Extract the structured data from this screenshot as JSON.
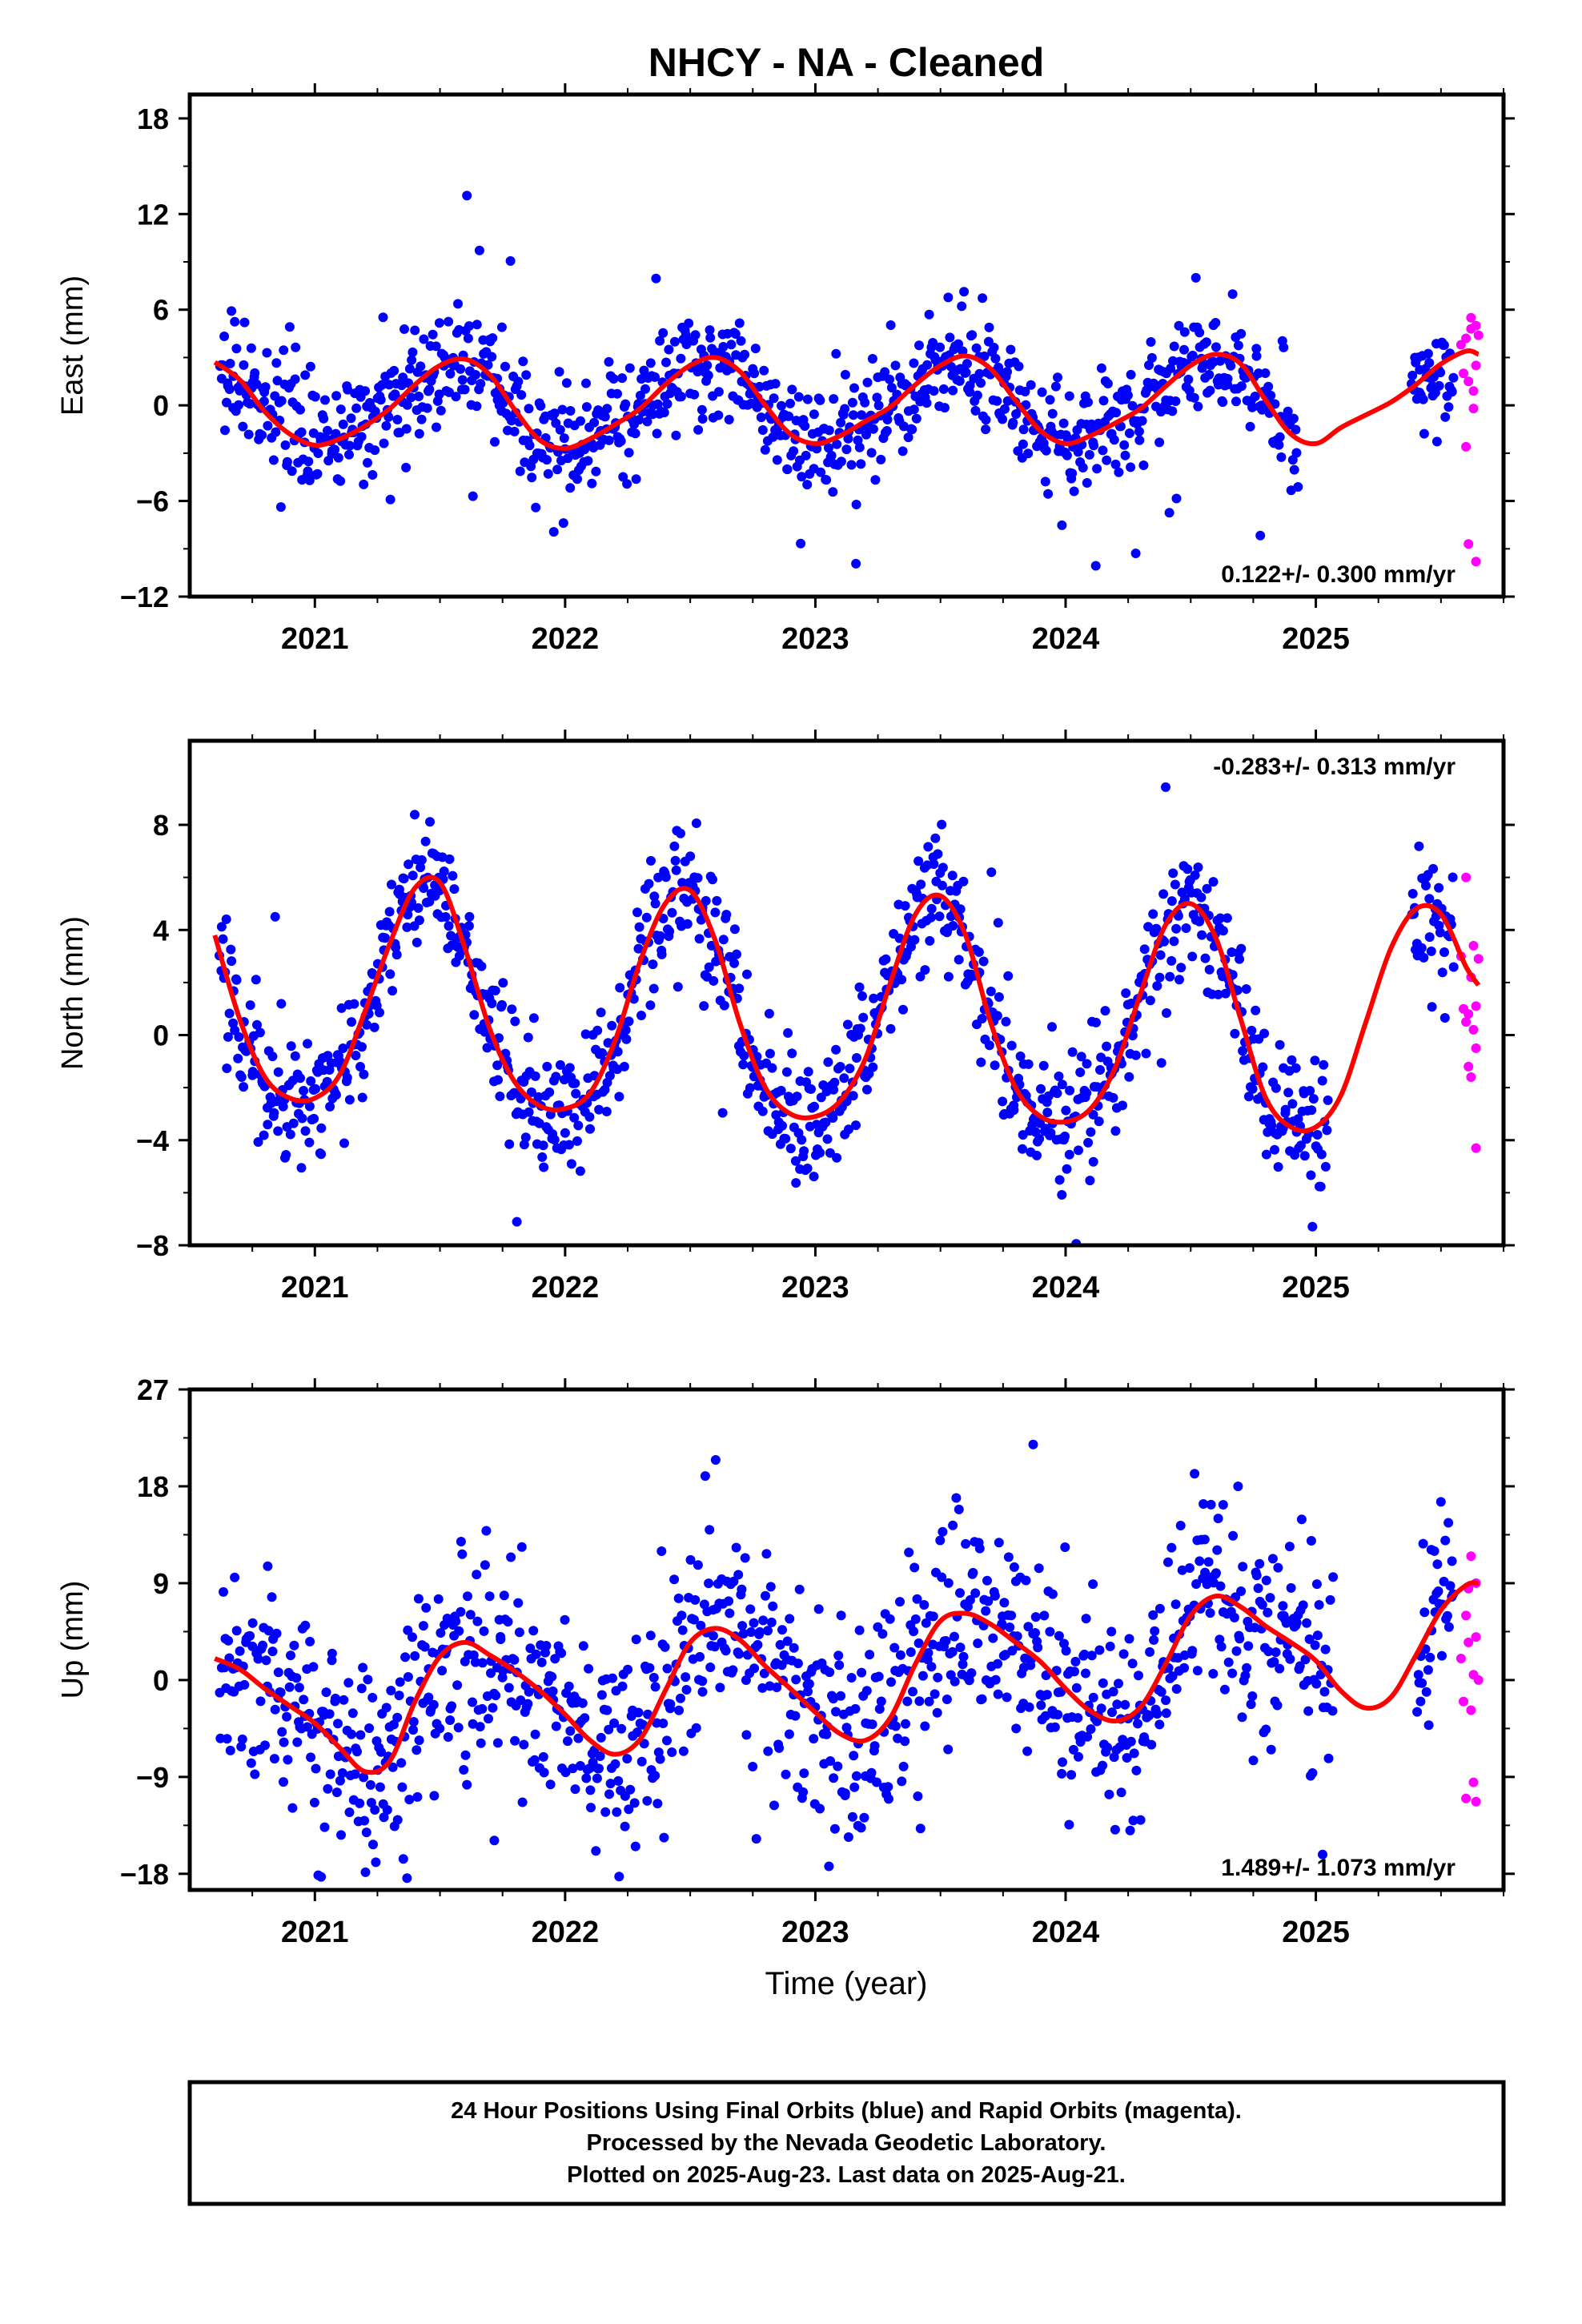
{
  "title": "NHCY  - NA - Cleaned",
  "xlabel": "Time (year)",
  "colors": {
    "final": "#0000ff",
    "rapid": "#ff00ff",
    "model": "#ff0000",
    "frame": "#000000"
  },
  "footer": {
    "lines": [
      "24 Hour Positions Using Final Orbits (blue) and Rapid Orbits (magenta).",
      "Processed by the Nevada Geodetic Laboratory.",
      "Plotted on 2025-Aug-23. Last data on 2025-Aug-21."
    ]
  },
  "chart_data": [
    {
      "type": "scatter",
      "component": "east",
      "ylabel": "East (mm)",
      "xlim": [
        2020.5,
        2025.75
      ],
      "ylim": [
        -12,
        19.5
      ],
      "xticks": [
        2021,
        2022,
        2023,
        2024,
        2025
      ],
      "yticks": [
        -12,
        -6,
        0,
        6,
        12,
        18
      ],
      "yticklabels": [
        "−12",
        "−6",
        "0",
        "6",
        "12",
        "18"
      ],
      "rate_label": "0.122+/- 0.300 mm/yr",
      "rate_position": "bottom-right",
      "model": {
        "name": "model",
        "x": [
          2020.6,
          2020.7,
          2020.8,
          2020.9,
          2021.0,
          2021.1,
          2021.2,
          2021.3,
          2021.4,
          2021.5,
          2021.6,
          2021.7,
          2021.8,
          2021.9,
          2022.0,
          2022.1,
          2022.2,
          2022.3,
          2022.4,
          2022.5,
          2022.6,
          2022.7,
          2022.8,
          2022.9,
          2023.0,
          2023.1,
          2023.2,
          2023.3,
          2023.4,
          2023.5,
          2023.6,
          2023.7,
          2023.8,
          2023.9,
          2024.0,
          2024.1,
          2024.2,
          2024.3,
          2024.4,
          2024.5,
          2024.6,
          2024.7,
          2024.8,
          2024.9,
          2025.0,
          2025.1,
          2025.2,
          2025.3,
          2025.4,
          2025.5,
          2025.6,
          2025.65
        ],
        "y": [
          2.7,
          1.6,
          -0.4,
          -1.8,
          -2.5,
          -2.1,
          -1.3,
          -0.2,
          1.3,
          2.5,
          2.9,
          1.9,
          -0.3,
          -2.2,
          -2.7,
          -2.1,
          -1.2,
          -0.2,
          1.3,
          2.5,
          3.0,
          2.1,
          0.0,
          -1.8,
          -2.4,
          -1.9,
          -1.0,
          -0.1,
          1.3,
          2.5,
          3.1,
          2.3,
          0.3,
          -1.6,
          -2.4,
          -1.9,
          -1.1,
          -0.2,
          1.2,
          2.5,
          3.2,
          2.6,
          0.3,
          -1.8,
          -2.4,
          -1.4,
          -0.6,
          0.2,
          1.3,
          2.6,
          3.4,
          3.2
        ]
      },
      "scatter_params": {
        "start": 2020.62,
        "end": 2025.55,
        "count": 1150,
        "noise": 1.7,
        "outliers": 0.025,
        "outlier_amp": 7,
        "gaps": [
          [
            2024.93,
            2025.38
          ]
        ]
      },
      "rapid": {
        "x": [
          2025.58,
          2025.59,
          2025.6,
          2025.6,
          2025.61,
          2025.61,
          2025.62,
          2025.62,
          2025.63,
          2025.63,
          2025.64,
          2025.64,
          2025.64,
          2025.65
        ],
        "y": [
          3.8,
          2.0,
          -2.6,
          4.2,
          1.5,
          -8.7,
          4.8,
          5.5,
          0.9,
          -0.2,
          2.5,
          -9.8,
          5.0,
          4.4
        ]
      }
    },
    {
      "type": "scatter",
      "component": "north",
      "ylabel": "North (mm)",
      "xlim": [
        2020.5,
        2025.75
      ],
      "ylim": [
        -8,
        11.2
      ],
      "xticks": [
        2021,
        2022,
        2023,
        2024,
        2025
      ],
      "yticks": [
        -8,
        -4,
        0,
        4,
        8
      ],
      "yticklabels": [
        "−8",
        "−4",
        "0",
        "4",
        "8"
      ],
      "rate_label": "-0.283+/- 0.313 mm/yr",
      "rate_position": "top-right",
      "model": {
        "name": "model",
        "x": [
          2020.6,
          2020.7,
          2020.8,
          2020.9,
          2021.0,
          2021.1,
          2021.2,
          2021.3,
          2021.4,
          2021.5,
          2021.6,
          2021.7,
          2021.8,
          2021.9,
          2022.0,
          2022.1,
          2022.2,
          2022.3,
          2022.4,
          2022.5,
          2022.6,
          2022.7,
          2022.8,
          2022.9,
          2023.0,
          2023.1,
          2023.2,
          2023.3,
          2023.4,
          2023.5,
          2023.6,
          2023.7,
          2023.8,
          2023.9,
          2024.0,
          2024.1,
          2024.2,
          2024.3,
          2024.4,
          2024.5,
          2024.6,
          2024.7,
          2024.8,
          2024.9,
          2025.0,
          2025.1,
          2025.2,
          2025.3,
          2025.4,
          2025.5,
          2025.6,
          2025.65
        ],
        "y": [
          3.8,
          0.6,
          -1.6,
          -2.4,
          -2.4,
          -1.5,
          0.9,
          3.5,
          5.6,
          5.8,
          3.3,
          0.2,
          -1.8,
          -2.7,
          -2.8,
          -2.2,
          -0.2,
          2.8,
          5.0,
          5.5,
          3.6,
          0.4,
          -2.0,
          -3.0,
          -3.1,
          -2.5,
          -0.9,
          2.0,
          4.6,
          5.3,
          3.8,
          0.5,
          -2.0,
          -3.1,
          -3.3,
          -2.8,
          -1.2,
          1.6,
          4.2,
          5.0,
          3.7,
          0.6,
          -2.4,
          -3.5,
          -3.5,
          -2.3,
          0.5,
          3.3,
          4.8,
          4.6,
          2.6,
          1.9
        ]
      },
      "scatter_params": {
        "start": 2020.62,
        "end": 2025.55,
        "count": 1150,
        "noise": 1.2,
        "outliers": 0.03,
        "outlier_amp": 4,
        "gaps": [
          [
            2025.05,
            2025.38
          ]
        ]
      },
      "rapid": {
        "x": [
          2025.58,
          2025.59,
          2025.6,
          2025.6,
          2025.61,
          2025.61,
          2025.62,
          2025.62,
          2025.63,
          2025.63,
          2025.64,
          2025.64,
          2025.64,
          2025.65
        ],
        "y": [
          3.0,
          1.0,
          0.5,
          6.0,
          -1.2,
          0.8,
          2.2,
          -1.6,
          0.2,
          3.4,
          -4.3,
          1.1,
          -0.5,
          2.9
        ]
      }
    },
    {
      "type": "scatter",
      "component": "up",
      "ylabel": "Up (mm)",
      "xlim": [
        2020.5,
        2025.75
      ],
      "ylim": [
        -19.5,
        27
      ],
      "xticks": [
        2021,
        2022,
        2023,
        2024,
        2025
      ],
      "yticks": [
        -18,
        -9,
        0,
        9,
        18,
        27
      ],
      "yticklabels": [
        "−18",
        "−9",
        "0",
        "9",
        "18",
        "27"
      ],
      "rate_label": "1.489+/- 1.073 mm/yr",
      "rate_position": "bottom-right",
      "model": {
        "name": "model",
        "x": [
          2020.6,
          2020.7,
          2020.8,
          2020.9,
          2021.0,
          2021.1,
          2021.2,
          2021.3,
          2021.4,
          2021.5,
          2021.6,
          2021.7,
          2021.8,
          2021.9,
          2022.0,
          2022.1,
          2022.2,
          2022.3,
          2022.4,
          2022.5,
          2022.6,
          2022.7,
          2022.8,
          2022.9,
          2023.0,
          2023.1,
          2023.2,
          2023.3,
          2023.4,
          2023.5,
          2023.6,
          2023.7,
          2023.8,
          2023.9,
          2024.0,
          2024.1,
          2024.2,
          2024.3,
          2024.4,
          2024.5,
          2024.6,
          2024.7,
          2024.8,
          2024.9,
          2025.0,
          2025.1,
          2025.2,
          2025.3,
          2025.4,
          2025.5,
          2025.6,
          2025.65
        ],
        "y": [
          2.0,
          1.0,
          -0.8,
          -2.4,
          -4.0,
          -6.3,
          -8.5,
          -7.5,
          -2.0,
          2.2,
          3.5,
          2.3,
          0.8,
          -1.0,
          -3.2,
          -5.6,
          -6.9,
          -5.5,
          -1.0,
          3.5,
          4.8,
          3.7,
          1.3,
          -0.8,
          -3.0,
          -5.0,
          -5.6,
          -3.5,
          1.5,
          5.5,
          6.2,
          5.2,
          3.5,
          1.7,
          -0.8,
          -2.9,
          -3.8,
          -2.5,
          1.5,
          6.0,
          7.8,
          6.8,
          5.0,
          3.5,
          1.8,
          -1.0,
          -2.6,
          -1.6,
          2.3,
          6.5,
          8.8,
          9.0
        ]
      },
      "scatter_params": {
        "start": 2020.62,
        "end": 2025.55,
        "count": 1150,
        "noise": 4.8,
        "outliers": 0.03,
        "outlier_amp": 9,
        "gaps": [
          [
            2025.07,
            2025.4
          ]
        ]
      },
      "rapid": {
        "x": [
          2025.58,
          2025.59,
          2025.6,
          2025.6,
          2025.61,
          2025.61,
          2025.62,
          2025.62,
          2025.63,
          2025.63,
          2025.64,
          2025.64,
          2025.64,
          2025.65
        ],
        "y": [
          2.0,
          -2.0,
          6.0,
          -11.0,
          3.5,
          8.5,
          -2.8,
          11.5,
          0.5,
          -9.5,
          4.0,
          -11.3,
          9.0,
          0.0
        ]
      }
    }
  ]
}
